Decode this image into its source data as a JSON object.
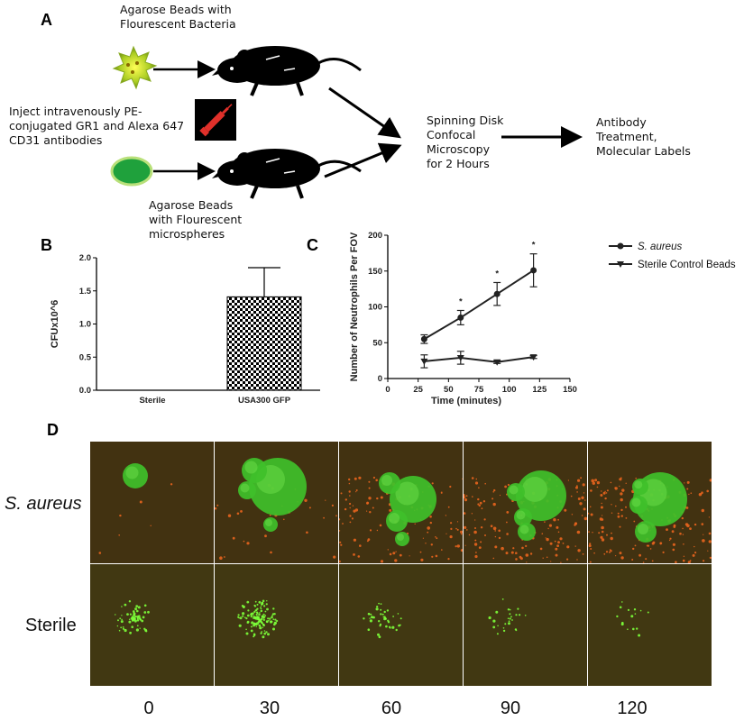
{
  "panel_a": {
    "letter": "A",
    "top_caption": [
      "Agarose Beads with",
      "Flourescent Bacteria"
    ],
    "inject_text": [
      "Inject intravenously PE-",
      "conjugated GR1 and Alexa 647",
      "CD31 antibodies"
    ],
    "bottom_caption": [
      "Agarose Beads",
      "with Flourescent",
      "microspheres"
    ],
    "microscopy_text": [
      "Spinning Disk",
      "Confocal",
      "Microscopy",
      "for 2 Hours"
    ],
    "antibody_text": [
      "Antibody",
      "Treatment,",
      "Molecular Labels"
    ]
  },
  "panel_b": {
    "letter": "B",
    "chart_data": {
      "type": "bar",
      "categories": [
        "Sterile",
        "USA300 GFP"
      ],
      "values": [
        0,
        1.41
      ],
      "errors": [
        0,
        0.44
      ],
      "ylabel": "CFUx10^6",
      "ylim": [
        0,
        2.0
      ],
      "yticks": [
        "0.0",
        "0.5",
        "1.0",
        "1.5",
        "2.0"
      ]
    }
  },
  "panel_c": {
    "letter": "C",
    "chart_data": {
      "type": "line",
      "xlabel": "Time (minutes)",
      "ylabel": "Number of Neutrophils Per FOV",
      "xlim": [
        0,
        150
      ],
      "ylim": [
        0,
        200
      ],
      "xticks": [
        "0",
        "25",
        "50",
        "75",
        "100",
        "125",
        "150"
      ],
      "yticks": [
        "0",
        "50",
        "100",
        "150",
        "200"
      ],
      "series": [
        {
          "name": "S. aureus",
          "x": [
            30,
            60,
            90,
            120
          ],
          "y": [
            55,
            85,
            118,
            151
          ],
          "err": [
            6,
            10,
            16,
            23
          ]
        },
        {
          "name": "Sterile Control Beads",
          "x": [
            30,
            60,
            90,
            120
          ],
          "y": [
            24,
            29,
            23,
            30
          ],
          "err": [
            9,
            9,
            2,
            2
          ]
        }
      ],
      "significance": [
        "*",
        "*",
        "*"
      ],
      "legend_position": "top-right"
    }
  },
  "panel_d": {
    "letter": "D",
    "row_labels": [
      "S. aureus",
      "Sterile"
    ],
    "time_labels": [
      "0",
      "30",
      "60",
      "90",
      "120"
    ]
  }
}
